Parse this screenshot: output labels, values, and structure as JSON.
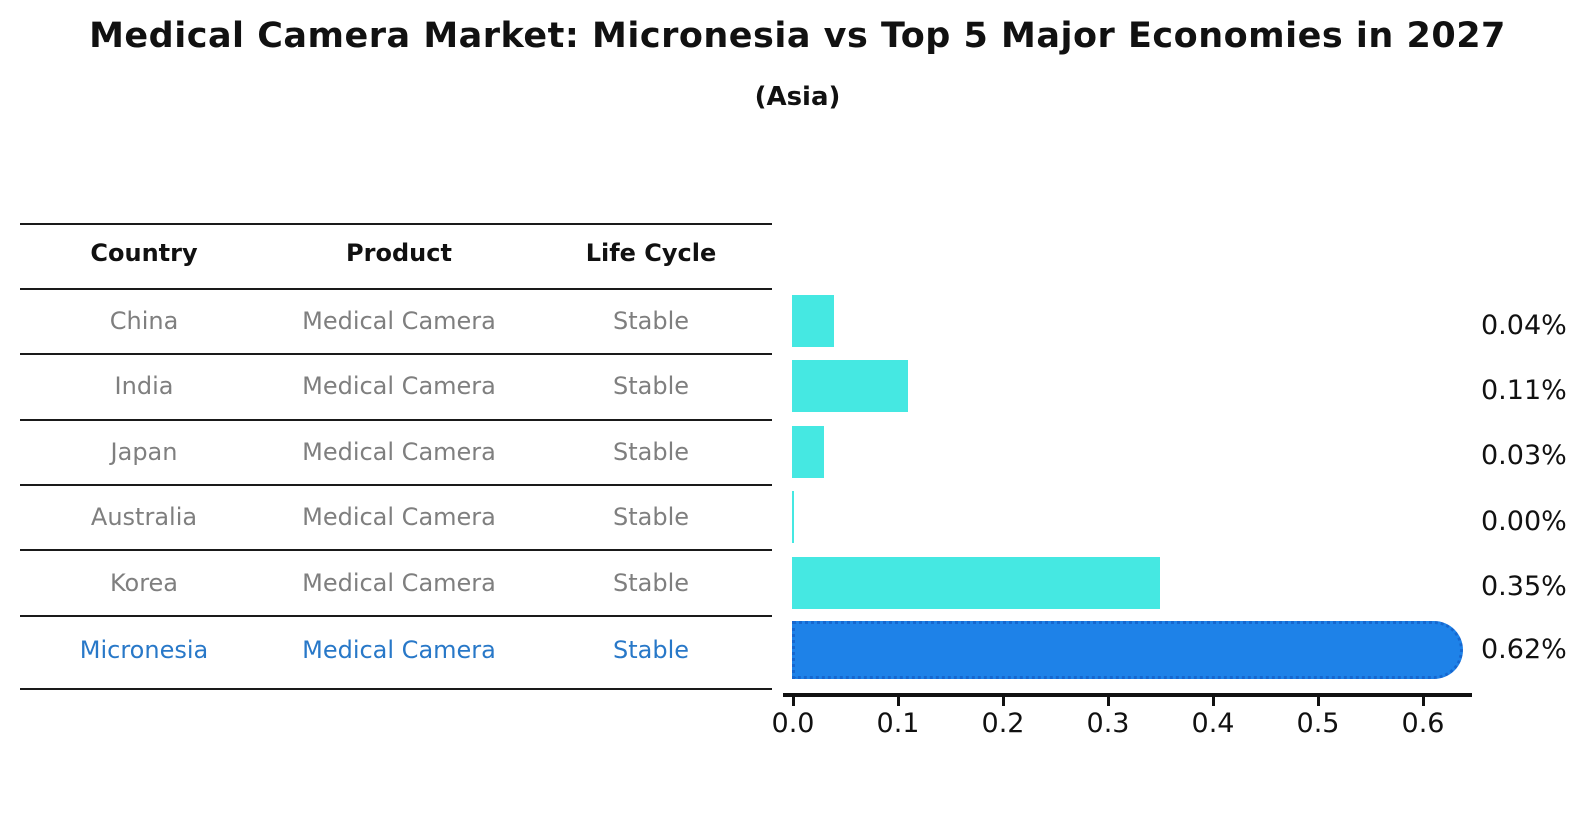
{
  "title": "Medical Camera Market: Micronesia vs Top 5 Major Economies in 2027",
  "subtitle": "(Asia)",
  "table": {
    "headers": [
      "Country",
      "Product",
      "Life Cycle"
    ],
    "rows": [
      {
        "country": "China",
        "product": "Medical Camera",
        "life_cycle": "Stable",
        "highlighted": false
      },
      {
        "country": "India",
        "product": "Medical Camera",
        "life_cycle": "Stable",
        "highlighted": false
      },
      {
        "country": "Japan",
        "product": "Medical Camera",
        "life_cycle": "Stable",
        "highlighted": false
      },
      {
        "country": "Australia",
        "product": "Medical Camera",
        "life_cycle": "Stable",
        "highlighted": false
      },
      {
        "country": "Korea",
        "product": "Medical Camera",
        "life_cycle": "Stable",
        "highlighted": false
      },
      {
        "country": "Micronesia",
        "product": "Medical Camera",
        "life_cycle": "Stable",
        "highlighted": true
      }
    ]
  },
  "chart_data": {
    "type": "bar",
    "orientation": "horizontal",
    "title": "Medical Camera Market: Micronesia vs Top 5 Major Economies in 2027",
    "subtitle": "(Asia)",
    "categories": [
      "China",
      "India",
      "Japan",
      "Australia",
      "Korea",
      "Micronesia"
    ],
    "values": [
      0.04,
      0.11,
      0.03,
      0.0,
      0.35,
      0.62
    ],
    "value_labels": [
      "0.04%",
      "0.11%",
      "0.03%",
      "0.00%",
      "0.35%",
      "0.62%"
    ],
    "unit": "%",
    "x_ticks": [
      "0.0",
      "0.1",
      "0.2",
      "0.3",
      "0.4",
      "0.5",
      "0.6"
    ],
    "xlim": [
      0.0,
      0.65
    ],
    "grid": false,
    "legend": false,
    "highlight_index": 5,
    "colors": {
      "bar_default": "#45e8e2",
      "bar_highlight": "#1e82e8",
      "bar_highlight_edge": "#1667cf",
      "highlight_text": "#2878c8",
      "table_text": "#7f7f7f",
      "text": "#111111"
    }
  }
}
